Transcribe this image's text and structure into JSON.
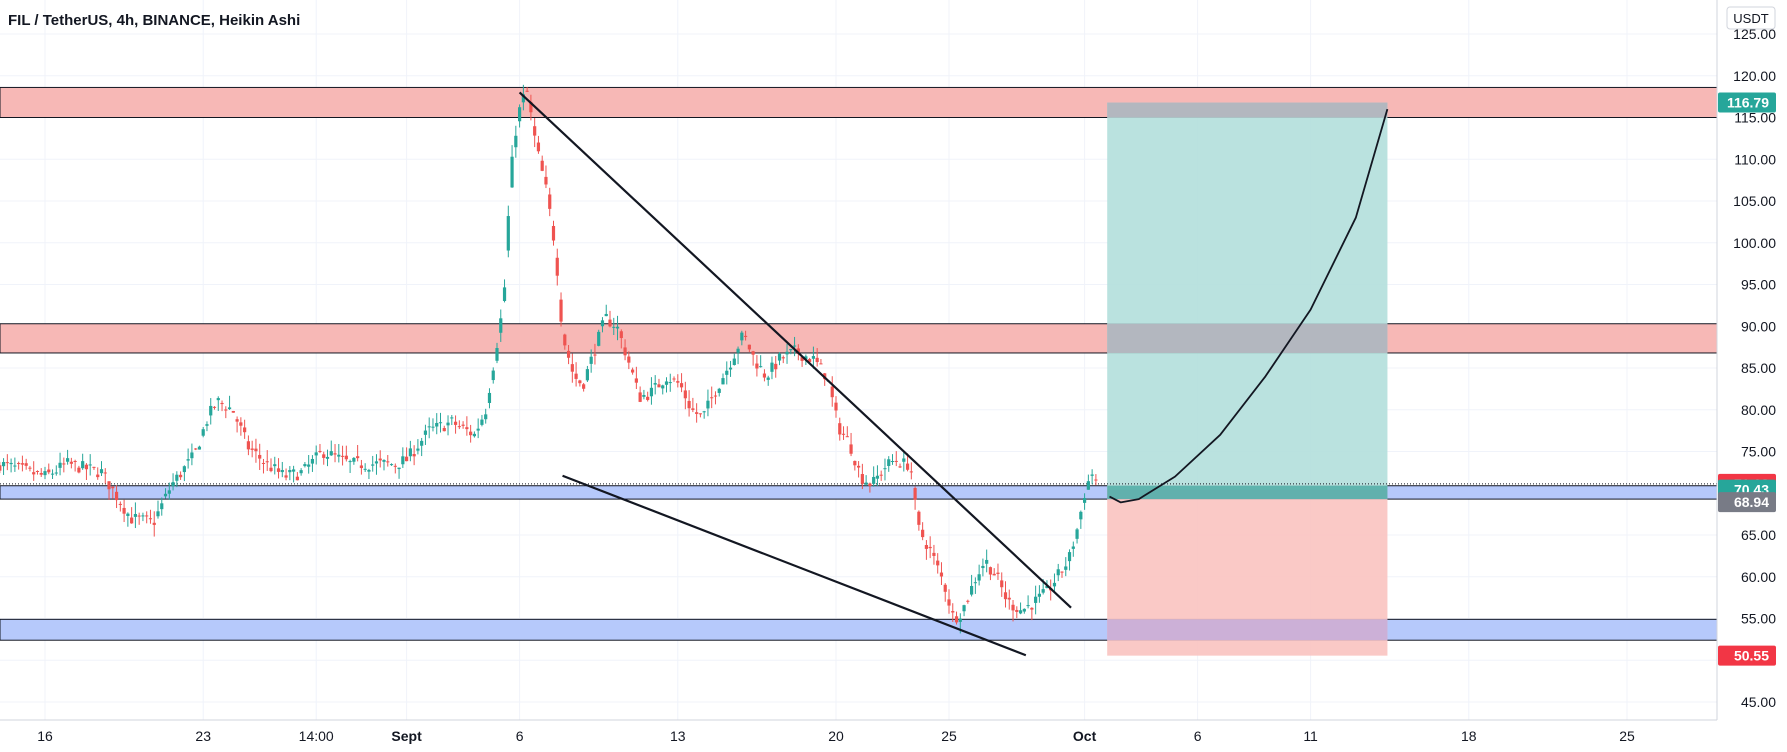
{
  "header": {
    "title": "FIL / TetherUS, 4h, BINANCE, Heikin Ashi"
  },
  "price_axis": {
    "unit": "USDT"
  },
  "colors": {
    "up": "#26a69a",
    "down": "#ef5350",
    "resistance_zone": "#f7b8b6",
    "support_zone": "#b6c9fb",
    "target_zone": "#b2dfdb",
    "stop_zone": "#f9c3c0",
    "target_badge": "#26a69a",
    "stop_badge": "#f23645",
    "last_badge": "#f23645",
    "entry_badge": "#26a69a",
    "avg_badge": "#787b86"
  },
  "chart_data": {
    "type": "candlestick",
    "title": "FIL / TetherUS, 4h, BINANCE, Heikin Ashi",
    "y_unit": "USDT",
    "ylim": [
      43.5,
      126
    ],
    "y_ticks": [
      "45.00",
      "50.00",
      "55.00",
      "60.00",
      "65.00",
      "70.00",
      "75.00",
      "80.00",
      "85.00",
      "90.00",
      "95.00",
      "100.00",
      "105.00",
      "110.00",
      "115.00",
      "120.00",
      "125.00"
    ],
    "x_ticks": [
      {
        "day": 16,
        "label": "16",
        "bold": false
      },
      {
        "day": 23,
        "label": "23",
        "bold": false
      },
      {
        "day": 28,
        "label": "14:00",
        "bold": false
      },
      {
        "day": 32,
        "label": "Sept",
        "bold": true
      },
      {
        "day": 37,
        "label": "6",
        "bold": false
      },
      {
        "day": 44,
        "label": "13",
        "bold": false
      },
      {
        "day": 51,
        "label": "20",
        "bold": false
      },
      {
        "day": 56,
        "label": "25",
        "bold": false
      },
      {
        "day": 62,
        "label": "Oct",
        "bold": true
      },
      {
        "day": 67,
        "label": "6",
        "bold": false
      },
      {
        "day": 72,
        "label": "11",
        "bold": false
      },
      {
        "day": 79,
        "label": "18",
        "bold": false
      },
      {
        "day": 86,
        "label": "25",
        "bold": false
      }
    ],
    "x_range_days": [
      14,
      90.8
    ],
    "price_path": [
      [
        14.0,
        73.5
      ],
      [
        16.0,
        72.0
      ],
      [
        17.0,
        73.5
      ],
      [
        18.5,
        72.5
      ],
      [
        19.8,
        67.0
      ],
      [
        20.8,
        66.5
      ],
      [
        21.6,
        71.0
      ],
      [
        22.6,
        74.5
      ],
      [
        23.2,
        79.0
      ],
      [
        23.6,
        81.0
      ],
      [
        24.3,
        80.0
      ],
      [
        25.0,
        75.5
      ],
      [
        25.8,
        73.5
      ],
      [
        26.6,
        72.0
      ],
      [
        27.4,
        72.5
      ],
      [
        28.3,
        75.0
      ],
      [
        29.5,
        73.5
      ],
      [
        30.5,
        73.5
      ],
      [
        31.5,
        73.5
      ],
      [
        32.0,
        74.0
      ],
      [
        33.0,
        77.5
      ],
      [
        34.0,
        78.5
      ],
      [
        35.0,
        77.0
      ],
      [
        35.5,
        80.0
      ],
      [
        36.0,
        88.0
      ],
      [
        36.3,
        93.0
      ],
      [
        36.6,
        108.0
      ],
      [
        36.9,
        115.0
      ],
      [
        37.3,
        118.5
      ],
      [
        37.7,
        112.0
      ],
      [
        38.2,
        106.0
      ],
      [
        38.6,
        99.0
      ],
      [
        38.9,
        89.0
      ],
      [
        39.4,
        84.0
      ],
      [
        39.8,
        83.0
      ],
      [
        40.3,
        87.0
      ],
      [
        40.8,
        91.0
      ],
      [
        41.3,
        90.0
      ],
      [
        41.8,
        86.0
      ],
      [
        42.3,
        81.5
      ],
      [
        42.8,
        82.0
      ],
      [
        43.5,
        84.0
      ],
      [
        44.1,
        83.0
      ],
      [
        44.6,
        80.0
      ],
      [
        45.1,
        79.0
      ],
      [
        45.6,
        82.0
      ],
      [
        46.2,
        85.0
      ],
      [
        46.9,
        89.0
      ],
      [
        47.4,
        86.0
      ],
      [
        47.9,
        84.0
      ],
      [
        48.5,
        86.0
      ],
      [
        49.2,
        87.0
      ],
      [
        50.0,
        86.0
      ],
      [
        50.6,
        84.0
      ],
      [
        51.1,
        78.0
      ],
      [
        51.6,
        76.0
      ],
      [
        52.1,
        72.0
      ],
      [
        52.6,
        71.0
      ],
      [
        53.1,
        73.0
      ],
      [
        53.6,
        74.0
      ],
      [
        54.0,
        73.5
      ],
      [
        54.3,
        73.5
      ],
      [
        54.6,
        66.0
      ],
      [
        55.2,
        63.0
      ],
      [
        55.8,
        59.0
      ],
      [
        56.2,
        55.0
      ],
      [
        56.6,
        56.0
      ],
      [
        57.2,
        60.0
      ],
      [
        57.6,
        62.0
      ],
      [
        58.1,
        60.0
      ],
      [
        58.6,
        57.0
      ],
      [
        59.2,
        56.0
      ],
      [
        59.8,
        57.0
      ],
      [
        60.3,
        58.0
      ],
      [
        60.8,
        60.0
      ],
      [
        61.3,
        62.0
      ],
      [
        61.7,
        66.0
      ],
      [
        62.0,
        70.0
      ],
      [
        62.3,
        72.5
      ],
      [
        62.6,
        71.13
      ]
    ],
    "zones": [
      {
        "name": "resistance-upper",
        "kind": "resistance",
        "from": 115.0,
        "to": 118.6
      },
      {
        "name": "resistance-middle",
        "kind": "resistance",
        "from": 86.8,
        "to": 90.3
      },
      {
        "name": "support-upper",
        "kind": "support",
        "from": 69.3,
        "to": 70.9
      },
      {
        "name": "support-lower",
        "kind": "support",
        "from": 52.4,
        "to": 54.9
      }
    ],
    "trendlines": [
      {
        "name": "falling-wedge-upper",
        "from": [
          37.0,
          118.0
        ],
        "to": [
          61.4,
          56.3
        ]
      },
      {
        "name": "falling-wedge-lower",
        "from": [
          38.9,
          72.1
        ],
        "to": [
          59.4,
          50.6
        ]
      }
    ],
    "position": {
      "entry": 70.43,
      "target": 116.79,
      "stop": 50.55,
      "from_day": 63.0,
      "to_day": 75.4
    },
    "projection": [
      [
        63.1,
        69.6
      ],
      [
        63.6,
        68.9
      ],
      [
        64.4,
        69.3
      ],
      [
        66.0,
        72.0
      ],
      [
        68.0,
        77.0
      ],
      [
        70.0,
        84.0
      ],
      [
        72.0,
        92.0
      ],
      [
        74.0,
        103.0
      ],
      [
        75.4,
        116.0
      ]
    ],
    "badges": [
      {
        "name": "target-price-badge",
        "value": "116.79",
        "color_key": "target_badge"
      },
      {
        "name": "last-price-badge",
        "value": "71.13",
        "color_key": "last_badge"
      },
      {
        "name": "entry-price-badge",
        "value": "70.43",
        "color_key": "entry_badge"
      },
      {
        "name": "avg-price-badge",
        "value": "68.94",
        "color_key": "avg_badge"
      },
      {
        "name": "stop-price-badge",
        "value": "50.55",
        "color_key": "stop_badge"
      }
    ]
  }
}
